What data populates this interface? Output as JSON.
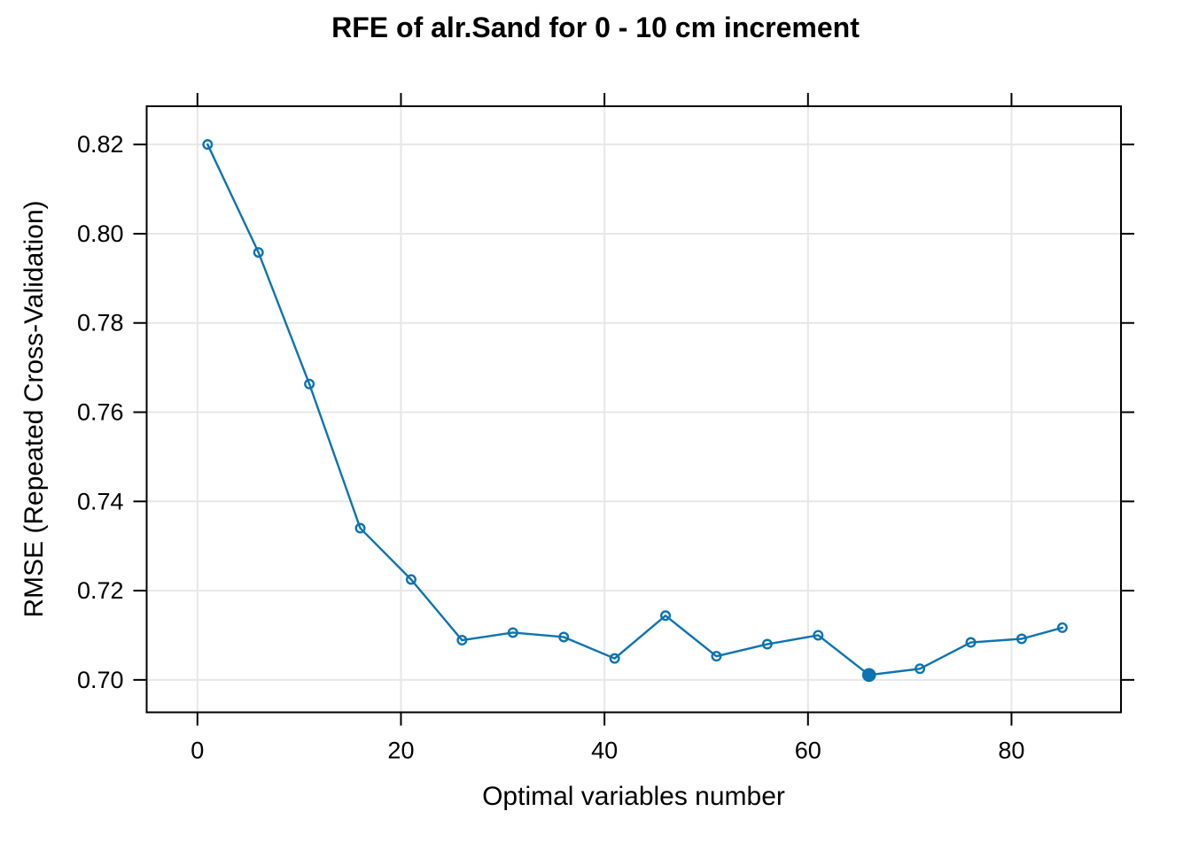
{
  "chart_data": {
    "type": "line",
    "title": "RFE of alr.Sand for 0 - 10 cm increment",
    "xlabel": "Optimal variables number",
    "ylabel": "RMSE (Repeated Cross-Validation)",
    "x": [
      1,
      6,
      11,
      16,
      21,
      26,
      31,
      36,
      41,
      46,
      51,
      56,
      61,
      66,
      71,
      76,
      81,
      85
    ],
    "y": [
      0.82,
      0.7958,
      0.7663,
      0.734,
      0.7225,
      0.7089,
      0.7106,
      0.7096,
      0.7048,
      0.7144,
      0.7053,
      0.708,
      0.71,
      0.7011,
      0.7025,
      0.7084,
      0.7092,
      0.7117
    ],
    "optimal_point": {
      "x": 66,
      "y": 0.7011,
      "style": "filled-circle"
    },
    "marker": "open-circle",
    "line_type": "overplotted-points-and-line",
    "xticks": {
      "values": [
        0,
        20,
        40,
        60,
        80
      ],
      "labels": [
        "0",
        "20",
        "40",
        "60",
        "80"
      ]
    },
    "yticks": {
      "values": [
        0.7,
        0.72,
        0.74,
        0.76,
        0.78,
        0.8,
        0.82
      ],
      "labels": [
        "0.70",
        "0.72",
        "0.74",
        "0.76",
        "0.78",
        "0.80",
        "0.82"
      ]
    },
    "xlim": [
      -4.99,
      90.76
    ],
    "ylim": [
      0.69273,
      0.82857
    ],
    "grid": true,
    "ticks_on_all_four_sides": true,
    "legend": "none",
    "colors": {
      "series": "#0D73B1",
      "grid": "#E7E7E7",
      "axis_box": "#000000",
      "text": "#000000",
      "background": "#FFFFFF"
    }
  }
}
